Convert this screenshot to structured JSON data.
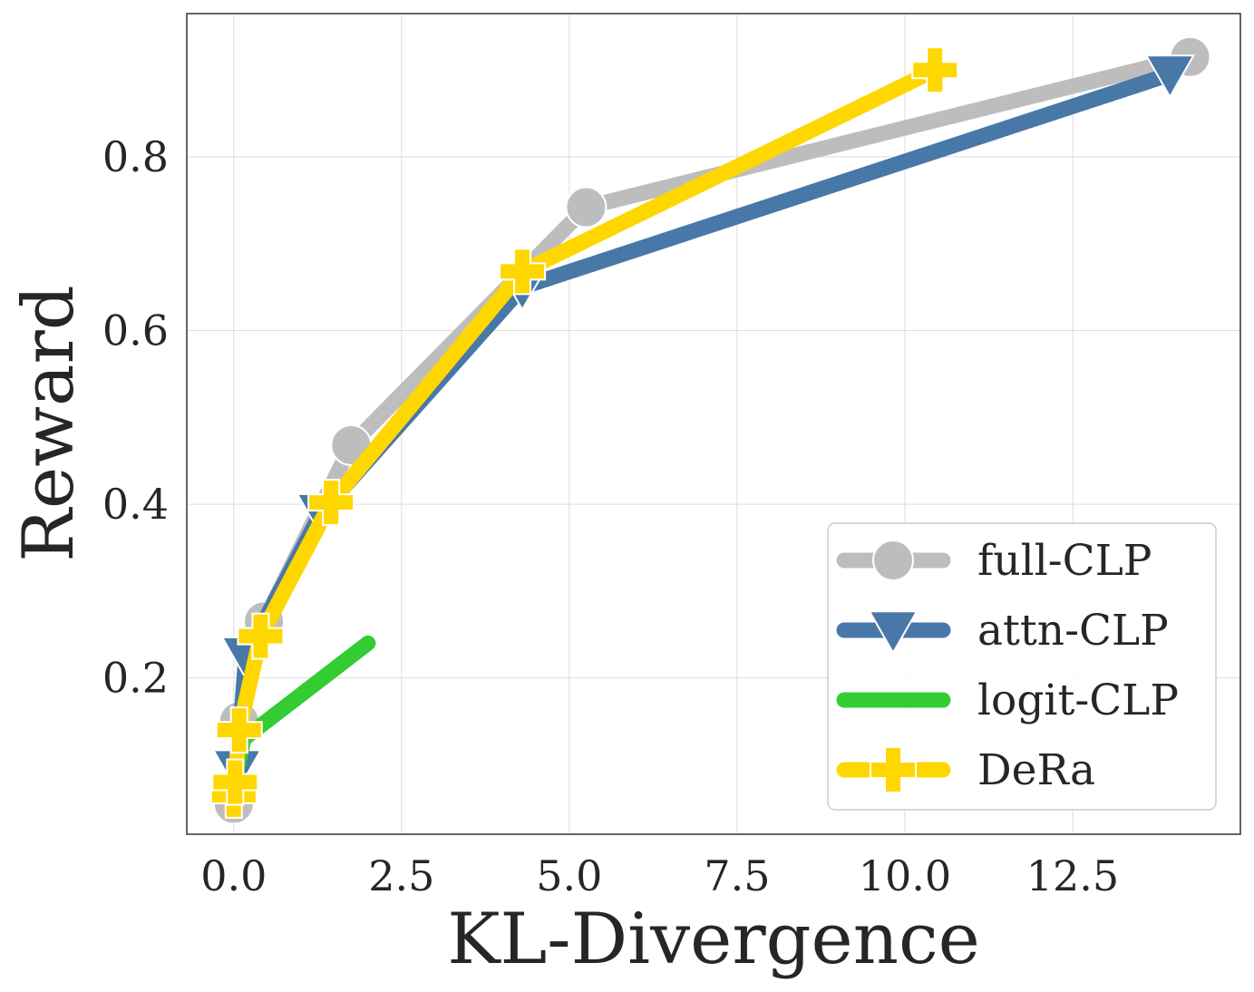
{
  "chart_data": {
    "type": "line",
    "xlabel": "KL-Divergence",
    "ylabel": "Reward",
    "xlim": [
      -0.7,
      15.0
    ],
    "ylim": [
      0.02,
      0.965
    ],
    "xticks": [
      0.0,
      2.5,
      5.0,
      7.5,
      10.0,
      12.5
    ],
    "xtick_labels": [
      "0.0",
      "2.5",
      "5.0",
      "7.5",
      "10.0",
      "12.5"
    ],
    "yticks": [
      0.2,
      0.4,
      0.6,
      0.8
    ],
    "ytick_labels": [
      "0.2",
      "0.4",
      "0.6",
      "0.8"
    ],
    "grid": true,
    "legend_position": "lower right",
    "series": [
      {
        "name": "full-CLP",
        "color": "#bdbdbd",
        "marker": "circle",
        "x": [
          0.0,
          0.08,
          0.45,
          1.75,
          5.25,
          14.25
        ],
        "y": [
          0.055,
          0.15,
          0.265,
          0.468,
          0.742,
          0.915
        ]
      },
      {
        "name": "attn-CLP",
        "color": "#4878a8",
        "marker": "triangle-down",
        "x": [
          0.0,
          0.05,
          0.18,
          1.3,
          4.3,
          13.95
        ],
        "y": [
          0.065,
          0.095,
          0.225,
          0.39,
          0.65,
          0.895
        ]
      },
      {
        "name": "logit-CLP",
        "color": "#33cc33",
        "marker": "none",
        "x": [
          0.0,
          0.05,
          0.15,
          2.0
        ],
        "y": [
          0.07,
          0.095,
          0.13,
          0.24
        ]
      },
      {
        "name": "DeRa",
        "color": "#ffd700",
        "marker": "plus",
        "x": [
          0.0,
          0.02,
          0.08,
          0.4,
          1.45,
          4.3,
          10.45
        ],
        "y": [
          0.065,
          0.08,
          0.14,
          0.248,
          0.402,
          0.668,
          0.9
        ]
      }
    ]
  }
}
